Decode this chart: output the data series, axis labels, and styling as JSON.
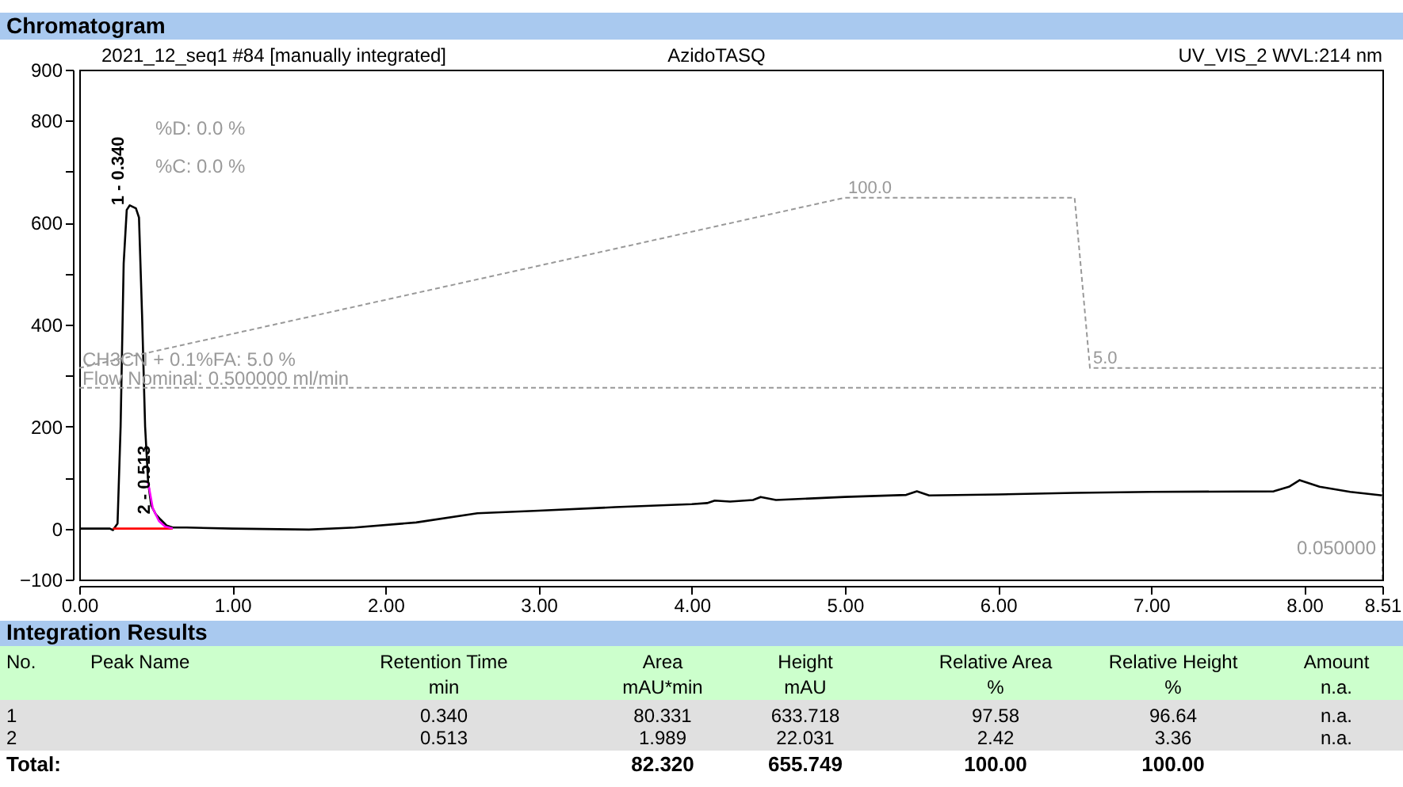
{
  "chart_data": {
    "type": "line",
    "title": "Chromatogram",
    "series": [
      {
        "color": "#000000",
        "line_style": "solid",
        "x": [
          0.0,
          0.2,
          0.22,
          0.25,
          0.27,
          0.29,
          0.31,
          0.33,
          0.37,
          0.39,
          0.41,
          0.43,
          0.45,
          0.47,
          0.5,
          0.53,
          0.57,
          0.61,
          0.7,
          1.0,
          1.5,
          1.8,
          2.2,
          2.6,
          3.0,
          3.5,
          4.0,
          4.1,
          4.15,
          4.25,
          4.4,
          4.45,
          4.55,
          5.0,
          5.4,
          5.47,
          5.55,
          6.0,
          6.5,
          7.0,
          7.8,
          7.9,
          7.97,
          8.1,
          8.3,
          8.51
        ],
        "values": [
          0,
          0,
          -3,
          10,
          200,
          520,
          625,
          634,
          628,
          610,
          420,
          200,
          90,
          45,
          28,
          18,
          6,
          2,
          2,
          0,
          -2,
          2,
          12,
          30,
          35,
          42,
          48,
          50,
          55,
          53,
          56,
          62,
          56,
          62,
          66,
          73,
          65,
          67,
          70,
          72,
          73,
          82,
          95,
          82,
          72,
          65
        ]
      },
      {
        "color": "#ff0000",
        "line_style": "solid",
        "x": [
          0.22,
          0.61
        ],
        "values": [
          0,
          0
        ]
      },
      {
        "color": "#ff00ff",
        "line_style": "solid",
        "x": [
          0.45,
          0.48,
          0.52,
          0.56,
          0.61
        ],
        "values": [
          90,
          40,
          15,
          4,
          0
        ]
      },
      {
        "color": "#999999",
        "line_style": "dashed",
        "x": [
          0.0,
          5.0,
          6.5,
          6.6,
          8.51
        ],
        "values": [
          315,
          649,
          649,
          315,
          315
        ]
      },
      {
        "color": "#999999",
        "line_style": "dashed",
        "x": [
          0.0,
          8.51,
          8.51
        ],
        "values": [
          276,
          276,
          -100
        ]
      }
    ],
    "xlim": [
      0,
      8.51
    ],
    "ylim": [
      -100,
      900
    ],
    "xticks": [
      {
        "value": 0,
        "label": "0.00"
      },
      {
        "value": 1,
        "label": "1.00"
      },
      {
        "value": 2,
        "label": "2.00"
      },
      {
        "value": 3,
        "label": "3.00"
      },
      {
        "value": 4,
        "label": "4.00"
      },
      {
        "value": 5,
        "label": "5.00"
      },
      {
        "value": 6,
        "label": "6.00"
      },
      {
        "value": 7,
        "label": "7.00"
      },
      {
        "value": 8,
        "label": "8.00"
      },
      {
        "value": 8.51,
        "label": "8.51"
      }
    ],
    "yticks": [
      -100,
      0,
      {
        "value": 100,
        "label": null
      },
      200,
      {
        "value": 300,
        "label": null
      },
      400,
      {
        "value": 500,
        "label": null
      },
      600,
      {
        "value": 700,
        "label": null
      },
      800,
      900
    ],
    "grid": false,
    "legend": false,
    "annotations": [
      "2021_12_seq1 #84 [manually integrated]",
      "AzidoTASQ",
      "UV_VIS_2 WVL:214 nm",
      "%D: 0.0 %",
      "%C: 0.0 %",
      "CH3CN + 0.1%FA: 5.0 %",
      "Flow Nominal: 0.500000 ml/min",
      "0.050000",
      {
        "text": "1 - 0.340",
        "x": 0.34,
        "y": 634
      },
      {
        "text": "2 - 0.513",
        "x": 0.513,
        "y": 28
      },
      {
        "text": "100.0",
        "x": 5.0,
        "y": 649
      },
      {
        "text": "5.0",
        "x": 6.6,
        "y": 315
      },
      "Integration Results",
      "No.",
      "Peak Name",
      "Retention Time",
      "Area",
      "Height",
      "Relative Area",
      "Relative Height",
      "Amount",
      null,
      null,
      "min",
      "mAU*min",
      "mAU",
      "%",
      "%",
      "n.a.",
      "1",
      null,
      "0.340",
      "80.331",
      "633.718",
      "97.58",
      "96.64",
      "n.a.",
      "2",
      null,
      "0.513",
      "1.989",
      "22.031",
      "2.42",
      "3.36",
      "n.a.",
      "Total:",
      null,
      null,
      "82.320",
      "655.749",
      "100.00",
      "100.00",
      null
    ]
  }
}
